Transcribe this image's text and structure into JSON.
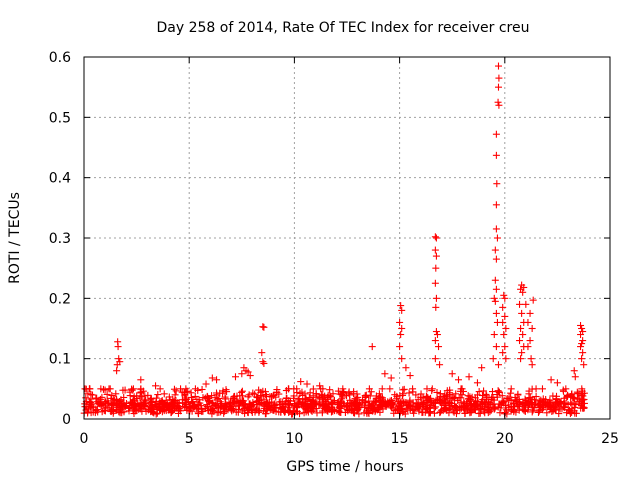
{
  "chart_data": {
    "type": "scatter",
    "title": "Day 258 of 2014, Rate Of TEC Index for receiver creu",
    "xlabel": "GPS time / hours",
    "ylabel": "ROTI / TECUs",
    "xlim": [
      0,
      25
    ],
    "ylim": [
      0,
      0.6
    ],
    "xticks": [
      "0",
      "5",
      "10",
      "15",
      "20",
      "25"
    ],
    "yticks": [
      "0",
      "0.1",
      "0.2",
      "0.3",
      "0.4",
      "0.5",
      "0.6"
    ],
    "grid": true,
    "marker": "+",
    "color": "#ff0000",
    "series": [
      {
        "name": "ROTI",
        "points": [
          [
            1.6,
            0.128
          ],
          [
            1.62,
            0.12
          ],
          [
            1.65,
            0.1
          ],
          [
            1.7,
            0.095
          ],
          [
            1.58,
            0.09
          ],
          [
            1.55,
            0.08
          ],
          [
            8.5,
            0.153
          ],
          [
            8.55,
            0.152
          ],
          [
            8.45,
            0.11
          ],
          [
            8.5,
            0.095
          ],
          [
            8.55,
            0.092
          ],
          [
            13.7,
            0.12
          ],
          [
            15.05,
            0.188
          ],
          [
            15.1,
            0.18
          ],
          [
            15.0,
            0.16
          ],
          [
            15.1,
            0.15
          ],
          [
            15.05,
            0.14
          ],
          [
            15.0,
            0.12
          ],
          [
            15.1,
            0.1
          ],
          [
            16.7,
            0.302
          ],
          [
            16.75,
            0.3
          ],
          [
            16.7,
            0.28
          ],
          [
            16.75,
            0.27
          ],
          [
            16.72,
            0.25
          ],
          [
            16.7,
            0.225
          ],
          [
            16.75,
            0.2
          ],
          [
            16.72,
            0.185
          ],
          [
            16.75,
            0.145
          ],
          [
            16.8,
            0.14
          ],
          [
            16.7,
            0.13
          ],
          [
            16.85,
            0.12
          ],
          [
            16.7,
            0.1
          ],
          [
            16.9,
            0.09
          ],
          [
            19.7,
            0.585
          ],
          [
            19.72,
            0.565
          ],
          [
            19.7,
            0.55
          ],
          [
            19.68,
            0.525
          ],
          [
            19.72,
            0.52
          ],
          [
            19.6,
            0.472
          ],
          [
            19.6,
            0.437
          ],
          [
            19.62,
            0.39
          ],
          [
            19.6,
            0.355
          ],
          [
            19.6,
            0.315
          ],
          [
            19.65,
            0.3
          ],
          [
            19.55,
            0.28
          ],
          [
            19.6,
            0.265
          ],
          [
            19.55,
            0.23
          ],
          [
            19.6,
            0.215
          ],
          [
            19.5,
            0.2
          ],
          [
            19.55,
            0.195
          ],
          [
            19.6,
            0.175
          ],
          [
            19.65,
            0.16
          ],
          [
            19.5,
            0.14
          ],
          [
            19.6,
            0.12
          ],
          [
            19.45,
            0.1
          ],
          [
            19.7,
            0.09
          ],
          [
            19.95,
            0.205
          ],
          [
            20.0,
            0.2
          ],
          [
            19.9,
            0.185
          ],
          [
            20.0,
            0.17
          ],
          [
            19.9,
            0.16
          ],
          [
            20.05,
            0.15
          ],
          [
            19.95,
            0.14
          ],
          [
            20.0,
            0.12
          ],
          [
            19.9,
            0.11
          ],
          [
            20.05,
            0.1
          ],
          [
            20.8,
            0.222
          ],
          [
            20.9,
            0.218
          ],
          [
            20.75,
            0.215
          ],
          [
            20.85,
            0.21
          ],
          [
            20.7,
            0.19
          ],
          [
            20.8,
            0.175
          ],
          [
            20.9,
            0.16
          ],
          [
            20.75,
            0.15
          ],
          [
            20.85,
            0.14
          ],
          [
            20.7,
            0.13
          ],
          [
            20.9,
            0.12
          ],
          [
            20.8,
            0.11
          ],
          [
            20.75,
            0.1
          ],
          [
            21.0,
            0.19
          ],
          [
            21.2,
            0.175
          ],
          [
            21.1,
            0.16
          ],
          [
            21.3,
            0.15
          ],
          [
            21.2,
            0.13
          ],
          [
            21.1,
            0.12
          ],
          [
            21.25,
            0.1
          ],
          [
            21.35,
            0.197
          ],
          [
            21.3,
            0.09
          ],
          [
            23.6,
            0.155
          ],
          [
            23.65,
            0.15
          ],
          [
            23.7,
            0.145
          ],
          [
            23.6,
            0.14
          ],
          [
            23.7,
            0.13
          ],
          [
            23.65,
            0.125
          ],
          [
            23.6,
            0.12
          ],
          [
            23.7,
            0.11
          ],
          [
            23.65,
            0.1
          ],
          [
            23.75,
            0.09
          ],
          [
            23.3,
            0.08
          ],
          [
            23.35,
            0.07
          ],
          [
            7.6,
            0.085
          ],
          [
            7.7,
            0.08
          ],
          [
            7.8,
            0.078
          ],
          [
            7.5,
            0.075
          ],
          [
            7.9,
            0.072
          ],
          [
            6.1,
            0.068
          ],
          [
            6.3,
            0.065
          ],
          [
            5.8,
            0.058
          ],
          [
            7.2,
            0.07
          ],
          [
            2.7,
            0.065
          ],
          [
            3.4,
            0.055
          ],
          [
            0.8,
            0.05
          ],
          [
            10.3,
            0.062
          ],
          [
            10.6,
            0.058
          ],
          [
            11.2,
            0.055
          ],
          [
            12.3,
            0.05
          ],
          [
            12.6,
            0.045
          ],
          [
            14.3,
            0.075
          ],
          [
            14.6,
            0.068
          ],
          [
            15.3,
            0.085
          ],
          [
            15.5,
            0.072
          ],
          [
            17.5,
            0.075
          ],
          [
            17.8,
            0.065
          ],
          [
            18.3,
            0.07
          ],
          [
            18.7,
            0.06
          ],
          [
            18.9,
            0.085
          ],
          [
            22.2,
            0.065
          ],
          [
            22.5,
            0.06
          ],
          [
            22.9,
            0.05
          ]
        ]
      }
    ],
    "baseline_band": {
      "description": "dense noise cluster near 0.01-0.05 TECUs across 0-24 h",
      "x_range": [
        0,
        23.8
      ],
      "y_range": [
        0.0,
        0.05
      ]
    }
  }
}
